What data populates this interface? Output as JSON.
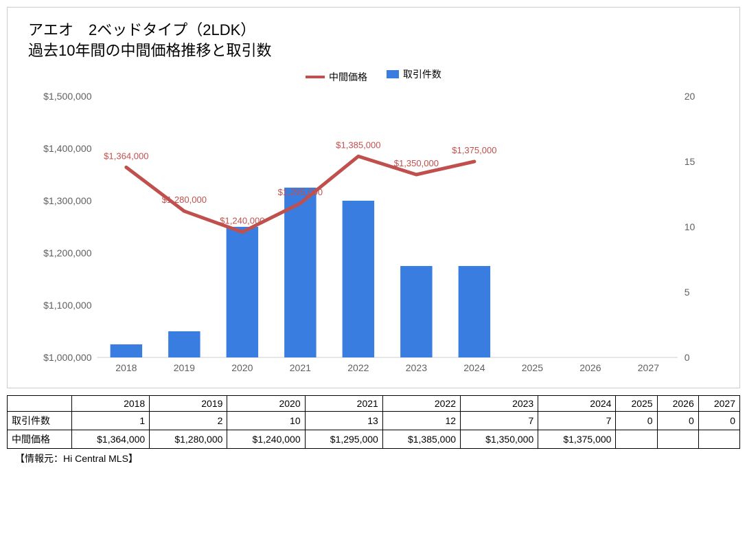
{
  "title_line1": "アエオ　2ベッドタイプ（2LDK）",
  "title_line2": "過去10年間の中間価格推移と取引数",
  "legend_price": "中間価格",
  "legend_count": "取引件数",
  "source": "【情報元：Hi Central MLS】",
  "chart": {
    "type": "bar+line",
    "categories": [
      "2018",
      "2019",
      "2020",
      "2021",
      "2022",
      "2023",
      "2024",
      "2025",
      "2026",
      "2027"
    ],
    "counts": [
      1,
      2,
      10,
      13,
      12,
      7,
      7,
      0,
      0,
      0
    ],
    "prices": [
      1364000,
      1280000,
      1240000,
      1295000,
      1385000,
      1350000,
      1375000,
      null,
      null,
      null
    ],
    "price_labels": [
      "$1,364,000",
      "$1,280,000",
      "$1,240,000",
      "$1,295,000",
      "$1,385,000",
      "$1,350,000",
      "$1,375,000",
      "",
      "",
      ""
    ],
    "y_left": {
      "min": 1000000,
      "max": 1500000,
      "step": 100000,
      "tick_labels": [
        "$1,000,000",
        "$1,100,000",
        "$1,200,000",
        "$1,300,000",
        "$1,400,000",
        "$1,500,000"
      ]
    },
    "y_right": {
      "min": 0,
      "max": 20,
      "step": 5,
      "tick_labels": [
        "0",
        "5",
        "10",
        "15",
        "20"
      ]
    },
    "bar_color": "#3a7de0",
    "line_color": "#c0504d",
    "bg_color": "#ffffff",
    "grid_color": "#cccccc",
    "axis_text_color": "#606060",
    "label_text_color": "#c0504d",
    "title_fontsize": 22,
    "axis_fontsize": 14,
    "datalabel_fontsize": 13,
    "line_width": 5,
    "bar_width_ratio": 0.55
  },
  "table": {
    "header": [
      "",
      "2018",
      "2019",
      "2020",
      "2021",
      "2022",
      "2023",
      "2024",
      "2025",
      "2026",
      "2027"
    ],
    "row_count_label": "取引件数",
    "row_price_label": "中間価格",
    "row_count": [
      "1",
      "2",
      "10",
      "13",
      "12",
      "7",
      "7",
      "0",
      "0",
      "0"
    ],
    "row_price": [
      "$1,364,000",
      "$1,280,000",
      "$1,240,000",
      "$1,295,000",
      "$1,385,000",
      "$1,350,000",
      "$1,375,000",
      "",
      "",
      ""
    ]
  }
}
